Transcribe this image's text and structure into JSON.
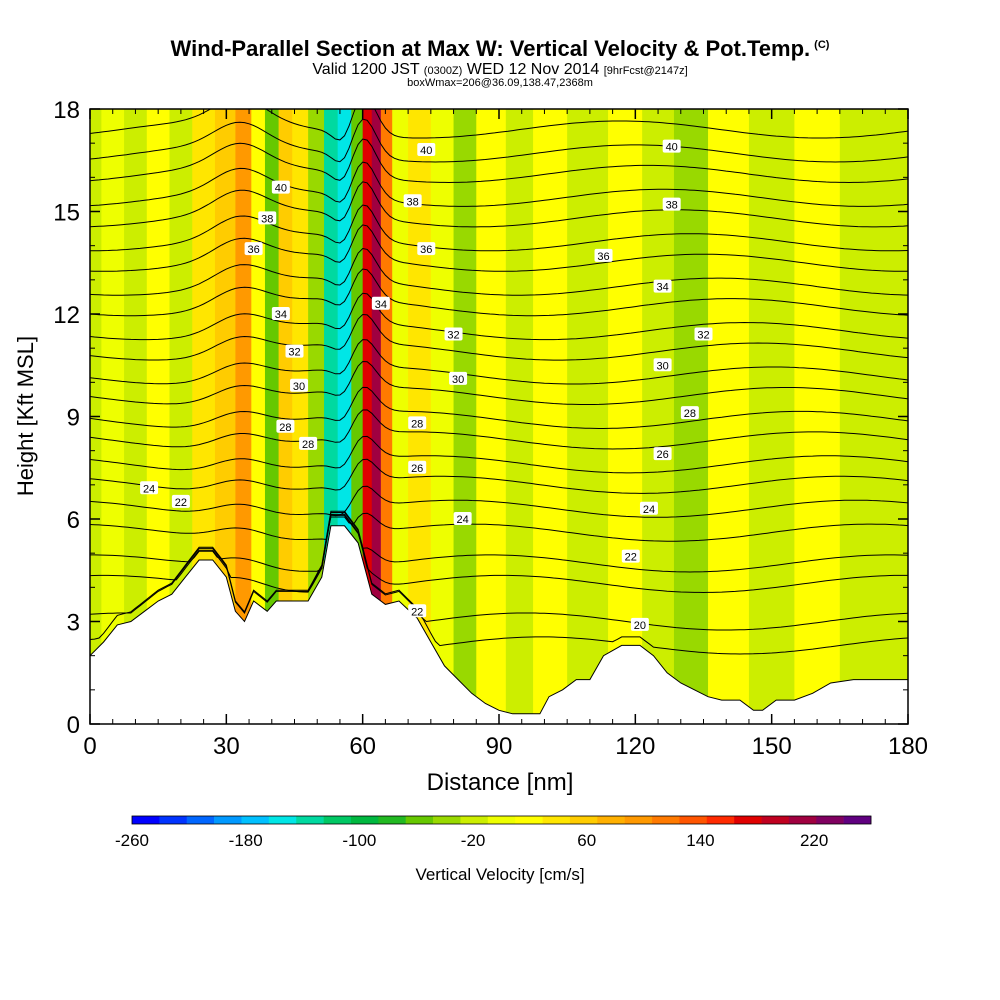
{
  "header": {
    "title": "Wind-Parallel Section at Max W: Vertical Velocity & Pot.Temp.",
    "copyright": "(C)",
    "valid_prefix": "Valid 1200 JST",
    "valid_utc": "(0300Z)",
    "valid_date": "WED 12 Nov 2014",
    "forecast": "[9hrFcst@2147z]",
    "box_info": "boxWmax=206@36.09,138.47,2368m"
  },
  "chart_data": {
    "type": "heatmap",
    "xlabel": "Distance [nm]",
    "ylabel": "Height [Kft MSL]",
    "xlim": [
      0,
      180
    ],
    "ylim": [
      0,
      18
    ],
    "x_ticks": [
      "0",
      "30",
      "60",
      "90",
      "120",
      "150",
      "180"
    ],
    "y_ticks": [
      "0",
      "3",
      "6",
      "9",
      "12",
      "15",
      "18"
    ],
    "colorbar": {
      "label": "Vertical Velocity [cm/s]",
      "range": [
        -260,
        260
      ],
      "ticks": [
        "-260",
        "-180",
        "-100",
        "-20",
        "60",
        "140",
        "220"
      ],
      "colors": [
        "#0000ff",
        "#0033ff",
        "#0066ff",
        "#0099ff",
        "#00c0ff",
        "#00e6e6",
        "#00d9a0",
        "#00c864",
        "#00b840",
        "#22b922",
        "#66c800",
        "#99d900",
        "#ccee00",
        "#eeff00",
        "#ffff00",
        "#ffe600",
        "#ffcc00",
        "#ffb000",
        "#ff9900",
        "#ff7a00",
        "#ff5500",
        "#ff2a00",
        "#e00000",
        "#c00020",
        "#a00040",
        "#800060",
        "#600080"
      ]
    },
    "velocity_columns": [
      {
        "x": 0,
        "w": -10
      },
      {
        "x": 5,
        "w": 0
      },
      {
        "x": 10,
        "w": -10
      },
      {
        "x": 15,
        "w": 10
      },
      {
        "x": 20,
        "w": -20
      },
      {
        "x": 25,
        "w": 40
      },
      {
        "x": 30,
        "w": 60
      },
      {
        "x": 34,
        "w": 100
      },
      {
        "x": 37,
        "w": 20
      },
      {
        "x": 40,
        "w": -50
      },
      {
        "x": 43,
        "w": 60
      },
      {
        "x": 46,
        "w": 40
      },
      {
        "x": 50,
        "w": -40
      },
      {
        "x": 53,
        "w": -140
      },
      {
        "x": 56,
        "w": -160
      },
      {
        "x": 59,
        "w": -60
      },
      {
        "x": 61,
        "w": 180
      },
      {
        "x": 63,
        "w": 206
      },
      {
        "x": 65,
        "w": 120
      },
      {
        "x": 68,
        "w": 0
      },
      {
        "x": 72,
        "w": 30
      },
      {
        "x": 78,
        "w": 0
      },
      {
        "x": 82,
        "w": -40
      },
      {
        "x": 88,
        "w": 10
      },
      {
        "x": 95,
        "w": -10
      },
      {
        "x": 100,
        "w": 10
      },
      {
        "x": 110,
        "w": -10
      },
      {
        "x": 118,
        "w": 20
      },
      {
        "x": 125,
        "w": -20
      },
      {
        "x": 132,
        "w": -40
      },
      {
        "x": 140,
        "w": 10
      },
      {
        "x": 150,
        "w": -10
      },
      {
        "x": 160,
        "w": 20
      },
      {
        "x": 170,
        "w": -20
      },
      {
        "x": 180,
        "w": -10
      }
    ],
    "terrain_kft": [
      [
        0,
        2
      ],
      [
        3,
        2.4
      ],
      [
        6,
        2.9
      ],
      [
        9,
        3.0
      ],
      [
        12,
        3.3
      ],
      [
        15,
        3.6
      ],
      [
        18,
        3.8
      ],
      [
        21,
        4.3
      ],
      [
        24,
        4.8
      ],
      [
        27,
        4.8
      ],
      [
        30,
        4.3
      ],
      [
        32,
        3.3
      ],
      [
        34,
        3.0
      ],
      [
        36,
        3.6
      ],
      [
        39,
        3.3
      ],
      [
        41,
        3.6
      ],
      [
        45,
        3.6
      ],
      [
        48,
        3.6
      ],
      [
        51,
        4.3
      ],
      [
        53,
        5.8
      ],
      [
        56,
        5.8
      ],
      [
        59,
        5.3
      ],
      [
        62,
        3.8
      ],
      [
        65,
        3.5
      ],
      [
        68,
        3.6
      ],
      [
        72,
        3.1
      ],
      [
        75,
        2.4
      ],
      [
        78,
        1.7
      ],
      [
        81,
        1.3
      ],
      [
        84,
        0.9
      ],
      [
        87,
        0.6
      ],
      [
        90,
        0.4
      ],
      [
        93,
        0.3
      ],
      [
        96,
        0.3
      ],
      [
        99,
        0.3
      ],
      [
        101,
        0.8
      ],
      [
        104,
        1.0
      ],
      [
        107,
        1.3
      ],
      [
        110,
        1.3
      ],
      [
        113,
        2.0
      ],
      [
        117,
        2.3
      ],
      [
        121,
        2.3
      ],
      [
        124,
        2.0
      ],
      [
        127,
        1.5
      ],
      [
        130,
        1.2
      ],
      [
        133,
        1.0
      ],
      [
        136,
        0.8
      ],
      [
        139,
        0.7
      ],
      [
        143,
        0.7
      ],
      [
        146,
        0.4
      ],
      [
        148,
        0.4
      ],
      [
        151,
        0.7
      ],
      [
        155,
        0.7
      ],
      [
        159,
        0.9
      ],
      [
        163,
        1.2
      ],
      [
        168,
        1.3
      ],
      [
        174,
        1.3
      ],
      [
        180,
        1.3
      ]
    ],
    "theta_contours": [
      {
        "theta": 20,
        "base": 2.3
      },
      {
        "theta": 21,
        "base": 3.0
      },
      {
        "theta": 22,
        "base": 4.1
      },
      {
        "theta": 23,
        "base": 4.7
      },
      {
        "theta": 24,
        "base": 5.6
      },
      {
        "theta": 25,
        "base": 6.3
      },
      {
        "theta": 26,
        "base": 7.0
      },
      {
        "theta": 27,
        "base": 7.6
      },
      {
        "theta": 28,
        "base": 8.3
      },
      {
        "theta": 29,
        "base": 8.9
      },
      {
        "theta": 30,
        "base": 9.6
      },
      {
        "theta": 31,
        "base": 10.2
      },
      {
        "theta": 32,
        "base": 10.9
      },
      {
        "theta": 33,
        "base": 11.5
      },
      {
        "theta": 34,
        "base": 12.2
      },
      {
        "theta": 35,
        "base": 12.8
      },
      {
        "theta": 36,
        "base": 13.5
      },
      {
        "theta": 37,
        "base": 14.1
      },
      {
        "theta": 38,
        "base": 14.8
      },
      {
        "theta": 39,
        "base": 15.4
      },
      {
        "theta": 40,
        "base": 16.1
      },
      {
        "theta": 41,
        "base": 16.7
      },
      {
        "theta": 42,
        "base": 17.4
      }
    ],
    "contour_labels": [
      {
        "text": "40",
        "x": 42,
        "y": 15.7
      },
      {
        "text": "40",
        "x": 74,
        "y": 16.8
      },
      {
        "text": "40",
        "x": 128,
        "y": 16.9
      },
      {
        "text": "38",
        "x": 39,
        "y": 14.8
      },
      {
        "text": "38",
        "x": 71,
        "y": 15.3
      },
      {
        "text": "38",
        "x": 128,
        "y": 15.2
      },
      {
        "text": "36",
        "x": 36,
        "y": 13.9
      },
      {
        "text": "36",
        "x": 74,
        "y": 13.9
      },
      {
        "text": "36",
        "x": 113,
        "y": 13.7
      },
      {
        "text": "34",
        "x": 42,
        "y": 12.0
      },
      {
        "text": "34",
        "x": 64,
        "y": 12.3
      },
      {
        "text": "34",
        "x": 126,
        "y": 12.8
      },
      {
        "text": "32",
        "x": 45,
        "y": 10.9
      },
      {
        "text": "32",
        "x": 80,
        "y": 11.4
      },
      {
        "text": "32",
        "x": 135,
        "y": 11.4
      },
      {
        "text": "30",
        "x": 46,
        "y": 9.9
      },
      {
        "text": "30",
        "x": 81,
        "y": 10.1
      },
      {
        "text": "30",
        "x": 126,
        "y": 10.5
      },
      {
        "text": "28",
        "x": 43,
        "y": 8.7
      },
      {
        "text": "28",
        "x": 48,
        "y": 8.2
      },
      {
        "text": "28",
        "x": 72,
        "y": 8.8
      },
      {
        "text": "28",
        "x": 132,
        "y": 9.1
      },
      {
        "text": "26",
        "x": 72,
        "y": 7.5
      },
      {
        "text": "26",
        "x": 126,
        "y": 7.9
      },
      {
        "text": "24",
        "x": 13,
        "y": 6.9
      },
      {
        "text": "24",
        "x": 82,
        "y": 6.0
      },
      {
        "text": "24",
        "x": 123,
        "y": 6.3
      },
      {
        "text": "22",
        "x": 20,
        "y": 6.5
      },
      {
        "text": "22",
        "x": 72,
        "y": 3.3
      },
      {
        "text": "22",
        "x": 119,
        "y": 4.9
      },
      {
        "text": "20",
        "x": 121,
        "y": 2.9
      }
    ]
  }
}
